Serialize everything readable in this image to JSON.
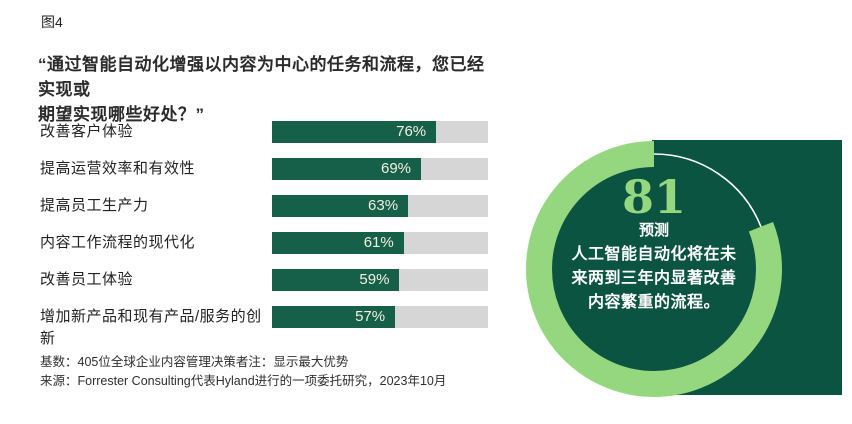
{
  "figure_label": "图4",
  "question": {
    "full": "“通过智能自动化增强以内容为中心的任务和流程，您已经实现或期望实现哪些好处？”",
    "line1": "“通过智能自动化增强以内容为中心的任务和流程，您已经实现或",
    "line2": "期望实现哪些好处？”"
  },
  "chart_data": {
    "type": "bar",
    "orientation": "horizontal",
    "categories": [
      "改善客户体验",
      "提高运营效率和有效性",
      "提高员工生产力",
      "内容工作流程的现代化",
      "改善员工体验",
      "增加新产品和现有产品/服务的创新"
    ],
    "values": [
      76,
      69,
      63,
      61,
      59,
      57
    ],
    "value_labels": [
      "76%",
      "69%",
      "63%",
      "61%",
      "59%",
      "57%"
    ],
    "xlim": [
      0,
      100
    ],
    "grid": false,
    "legend": false,
    "bar_color": "#16604a",
    "track_color": "#d6d6d6"
  },
  "donut": {
    "type": "donut",
    "number": "81",
    "percent": 81,
    "caption": "预测",
    "description": "人工智能自动化将在未来两到三年内显著改善内容繁重的流程。",
    "desc_line1": "人工智能自动化将在未",
    "desc_line2": "来两到三年内显著改善",
    "desc_line3": "内容繁重的流程。",
    "ring_color": "#95d77f",
    "remainder_color": "#ffffff",
    "panel_color": "#0b5442"
  },
  "footnotes": {
    "base": "基数：405位全球企业内容管理决策者注：显示最大优势",
    "source": "来源：Forrester Consulting代表Hyland进行的一项委托研究，2023年10月"
  },
  "colors": {
    "bar_green": "#16604a",
    "panel_green": "#0b5442",
    "light_green": "#95d77f",
    "track_gray": "#d6d6d6",
    "pct_text": "#f3f0df"
  }
}
